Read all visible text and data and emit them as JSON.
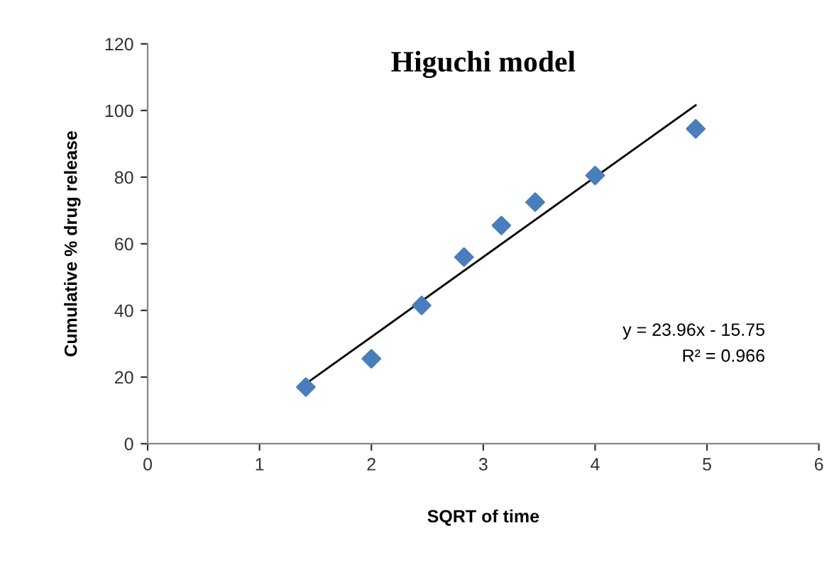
{
  "chart_data": {
    "type": "scatter",
    "title": "Higuchi model",
    "xlabel": "SQRT of time",
    "ylabel": "Cumulative % drug release",
    "series": [
      {
        "type": "scatter",
        "color": "#4a7ebb",
        "marker": "diamond",
        "x": [
          1.414,
          2,
          2.449,
          2.828,
          3.162,
          3.464,
          4,
          4.899
        ],
        "values": [
          17,
          25.5,
          41.5,
          56,
          65.5,
          72.5,
          80.5,
          94.5
        ]
      },
      {
        "type": "line",
        "color": "#000000",
        "marker": "none",
        "line_style": "solid",
        "x": [
          1.414,
          4.899
        ],
        "values": [
          18,
          101.6
        ]
      }
    ],
    "annotations": [
      "y = 23.96x - 15.75",
      "R² = 0.966"
    ],
    "xlim": [
      0,
      6
    ],
    "xticks": [
      0,
      1,
      2,
      3,
      4,
      5,
      6
    ],
    "ylim": [
      0,
      120
    ],
    "yticks": [
      0,
      20,
      40,
      60,
      80,
      100,
      120
    ],
    "grid": false,
    "legend": false
  }
}
